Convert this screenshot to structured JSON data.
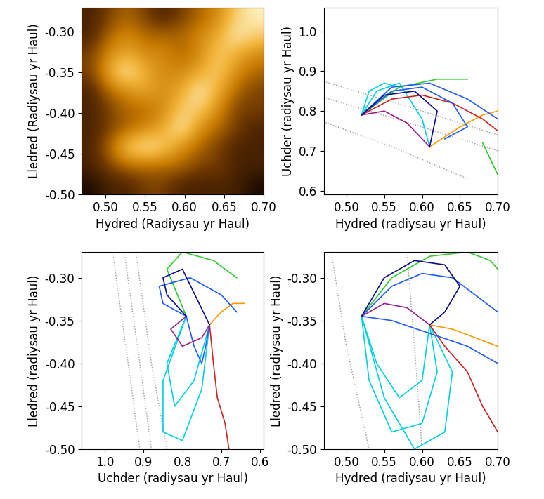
{
  "chart_data": [
    {
      "type": "heatmap",
      "xlabel": "Hydred (Radiysau yr Haul)",
      "ylabel": "Lledred (Radiysau yr Haul)",
      "xlim": [
        0.47,
        0.7
      ],
      "ylim": [
        -0.5,
        -0.27
      ],
      "xticks": [
        {
          "value": 0.5,
          "label": "0.50"
        },
        {
          "value": 0.55,
          "label": "0.55"
        },
        {
          "value": 0.6,
          "label": "0.60"
        },
        {
          "value": 0.65,
          "label": "0.65"
        },
        {
          "value": 0.7,
          "label": "0.70"
        }
      ],
      "yticks": [
        {
          "value": -0.3,
          "label": "-0.30"
        },
        {
          "value": -0.35,
          "label": "-0.35"
        },
        {
          "value": -0.4,
          "label": "-0.40"
        },
        {
          "value": -0.45,
          "label": "-0.45"
        },
        {
          "value": -0.5,
          "label": "-0.50"
        }
      ],
      "cells": [
        [
          0.3,
          0.4,
          0.5,
          0.4,
          0.3,
          0.4,
          0.5,
          0.6,
          0.8,
          0.9
        ],
        [
          0.3,
          0.5,
          0.6,
          0.5,
          0.5,
          0.5,
          0.6,
          0.7,
          0.9,
          0.8
        ],
        [
          0.4,
          0.6,
          0.7,
          0.6,
          0.6,
          0.5,
          0.6,
          0.8,
          0.7,
          0.6
        ],
        [
          0.4,
          0.7,
          0.9,
          0.7,
          0.6,
          0.6,
          0.7,
          0.8,
          0.6,
          0.5
        ],
        [
          0.3,
          0.5,
          0.6,
          0.7,
          0.6,
          0.7,
          0.9,
          0.7,
          0.5,
          0.4
        ],
        [
          0.3,
          0.4,
          0.5,
          0.5,
          0.6,
          0.8,
          0.8,
          0.6,
          0.4,
          0.4
        ],
        [
          0.3,
          0.4,
          0.5,
          0.6,
          0.7,
          0.9,
          0.6,
          0.5,
          0.4,
          0.3
        ],
        [
          0.3,
          0.5,
          0.8,
          0.9,
          0.8,
          0.6,
          0.5,
          0.4,
          0.3,
          0.3
        ],
        [
          0.3,
          0.4,
          0.5,
          0.5,
          0.5,
          0.5,
          0.4,
          0.4,
          0.3,
          0.3
        ],
        [
          0.2,
          0.3,
          0.3,
          0.4,
          0.4,
          0.3,
          0.3,
          0.3,
          0.3,
          0.2
        ]
      ]
    },
    {
      "type": "line",
      "xlabel": "Hydred (radiysau yr Haul)",
      "ylabel": "Uchder (radiysau yr Haul)",
      "xlim": [
        0.47,
        0.7
      ],
      "ylim": [
        0.59,
        1.06
      ],
      "xticks": [
        {
          "value": 0.5,
          "label": "0.50"
        },
        {
          "value": 0.55,
          "label": "0.55"
        },
        {
          "value": 0.6,
          "label": "0.60"
        },
        {
          "value": 0.65,
          "label": "0.65"
        },
        {
          "value": 0.7,
          "label": "0.70"
        }
      ],
      "yticks": [
        0.6,
        0.7,
        0.8,
        0.9,
        1.0
      ],
      "series": [
        {
          "color": "#999999",
          "line_style": "dotted",
          "x": [
            0.46,
            0.6,
            0.7
          ],
          "values": [
            0.88,
            0.8,
            0.74
          ]
        },
        {
          "color": "#999999",
          "line_style": "dotted",
          "x": [
            0.46,
            0.6,
            0.7
          ],
          "values": [
            0.84,
            0.76,
            0.7
          ]
        },
        {
          "color": "#999999",
          "line_style": "dotted",
          "x": [
            0.46,
            0.56,
            0.66
          ],
          "values": [
            0.78,
            0.71,
            0.63
          ]
        },
        {
          "color": "#00d0e0",
          "line_style": "solid",
          "x": [
            0.52,
            0.54,
            0.57,
            0.6,
            0.61
          ],
          "values": [
            0.79,
            0.85,
            0.87,
            0.78,
            0.71
          ]
        },
        {
          "color": "#00d0e0",
          "line_style": "solid",
          "x": [
            0.52,
            0.53,
            0.55,
            0.57
          ],
          "values": [
            0.79,
            0.85,
            0.87,
            0.86
          ]
        },
        {
          "color": "#2ecc2e",
          "line_style": "solid",
          "x": [
            0.52,
            0.57,
            0.62,
            0.66
          ],
          "values": [
            0.79,
            0.86,
            0.88,
            0.88
          ]
        },
        {
          "color": "#2ecc2e",
          "line_style": "solid",
          "x": [
            0.68,
            0.69,
            0.7
          ],
          "values": [
            0.72,
            0.68,
            0.64
          ]
        },
        {
          "color": "#d02020",
          "line_style": "solid",
          "x": [
            0.52,
            0.56,
            0.6,
            0.64,
            0.68,
            0.7
          ],
          "values": [
            0.79,
            0.83,
            0.84,
            0.82,
            0.78,
            0.75
          ]
        },
        {
          "color": "#ff9a00",
          "line_style": "solid",
          "x": [
            0.61,
            0.65,
            0.68,
            0.7
          ],
          "values": [
            0.71,
            0.76,
            0.79,
            0.8
          ]
        },
        {
          "color": "#9a2090",
          "line_style": "solid",
          "x": [
            0.52,
            0.55,
            0.58,
            0.61
          ],
          "values": [
            0.79,
            0.8,
            0.77,
            0.71
          ]
        },
        {
          "color": "#1e5cff",
          "line_style": "solid",
          "x": [
            0.52,
            0.56,
            0.61,
            0.66,
            0.7
          ],
          "values": [
            0.79,
            0.86,
            0.87,
            0.83,
            0.78
          ]
        },
        {
          "color": "#1e5cff",
          "line_style": "solid",
          "x": [
            0.52,
            0.56,
            0.6,
            0.64,
            0.66,
            0.63
          ],
          "values": [
            0.79,
            0.85,
            0.86,
            0.82,
            0.76,
            0.73
          ]
        },
        {
          "color": "#0a0a8c",
          "line_style": "solid",
          "x": [
            0.52,
            0.55,
            0.59,
            0.62,
            0.61
          ],
          "values": [
            0.79,
            0.84,
            0.85,
            0.8,
            0.71
          ]
        }
      ]
    },
    {
      "type": "line",
      "xlabel": "Uchder (radiysau yr Haul)",
      "ylabel": "Lledred (radiysau yr Haul)",
      "xlim": [
        1.06,
        0.59
      ],
      "ylim": [
        -0.5,
        -0.27
      ],
      "xticks": [
        1.0,
        0.9,
        0.8,
        0.7,
        0.6
      ],
      "yticks": [
        {
          "value": -0.3,
          "label": "-0.30"
        },
        {
          "value": -0.35,
          "label": "-0.35"
        },
        {
          "value": -0.4,
          "label": "-0.40"
        },
        {
          "value": -0.45,
          "label": "-0.45"
        },
        {
          "value": -0.5,
          "label": "-0.50"
        }
      ],
      "series": [
        {
          "color": "#999999",
          "line_style": "dotted",
          "x": [
            0.92,
            0.88,
            0.84
          ],
          "values": [
            -0.27,
            -0.4,
            -0.5
          ]
        },
        {
          "color": "#999999",
          "line_style": "dotted",
          "x": [
            0.95,
            0.91,
            0.88
          ],
          "values": [
            -0.27,
            -0.4,
            -0.5
          ]
        },
        {
          "color": "#999999",
          "line_style": "dotted",
          "x": [
            0.98,
            0.94,
            0.91
          ],
          "values": [
            -0.27,
            -0.4,
            -0.5
          ]
        },
        {
          "color": "#00d0e0",
          "line_style": "solid",
          "x": [
            0.79,
            0.85,
            0.85,
            0.8,
            0.75,
            0.73
          ],
          "values": [
            -0.345,
            -0.42,
            -0.48,
            -0.49,
            -0.43,
            -0.355
          ]
        },
        {
          "color": "#00d0e0",
          "line_style": "solid",
          "x": [
            0.79,
            0.84,
            0.82,
            0.77,
            0.73
          ],
          "values": [
            -0.345,
            -0.4,
            -0.45,
            -0.42,
            -0.355
          ]
        },
        {
          "color": "#2ecc2e",
          "line_style": "solid",
          "x": [
            0.79,
            0.84,
            0.8,
            0.72,
            0.69,
            0.66
          ],
          "values": [
            -0.345,
            -0.29,
            -0.27,
            -0.28,
            -0.29,
            -0.3
          ]
        },
        {
          "color": "#d02020",
          "line_style": "solid",
          "x": [
            0.73,
            0.72,
            0.71,
            0.69,
            0.68
          ],
          "values": [
            -0.355,
            -0.4,
            -0.44,
            -0.47,
            -0.5
          ]
        },
        {
          "color": "#ff9a00",
          "line_style": "solid",
          "x": [
            0.73,
            0.7,
            0.67,
            0.64
          ],
          "values": [
            -0.355,
            -0.34,
            -0.33,
            -0.33
          ]
        },
        {
          "color": "#9a2090",
          "line_style": "solid",
          "x": [
            0.79,
            0.83,
            0.8,
            0.75,
            0.73
          ],
          "values": [
            -0.345,
            -0.36,
            -0.38,
            -0.37,
            -0.355
          ]
        },
        {
          "color": "#1e5cff",
          "line_style": "solid",
          "x": [
            0.79,
            0.85,
            0.86,
            0.78,
            0.7,
            0.66
          ],
          "values": [
            -0.345,
            -0.33,
            -0.31,
            -0.3,
            -0.32,
            -0.34
          ]
        },
        {
          "color": "#1e5cff",
          "line_style": "solid",
          "x": [
            0.79,
            0.77,
            0.75,
            0.74,
            0.73
          ],
          "values": [
            -0.345,
            -0.38,
            -0.4,
            -0.38,
            -0.355
          ]
        },
        {
          "color": "#0a0a8c",
          "line_style": "solid",
          "x": [
            0.79,
            0.84,
            0.85,
            0.8,
            0.73
          ],
          "values": [
            -0.345,
            -0.32,
            -0.3,
            -0.29,
            -0.355
          ]
        }
      ]
    },
    {
      "type": "line",
      "xlabel": "Hydred (radiysau yr Haul)",
      "ylabel": "Lledred (radiysau yr Haul)",
      "xlim": [
        0.47,
        0.7
      ],
      "ylim": [
        -0.5,
        -0.27
      ],
      "xticks": [
        {
          "value": 0.5,
          "label": "0.50"
        },
        {
          "value": 0.55,
          "label": "0.55"
        },
        {
          "value": 0.6,
          "label": "0.60"
        },
        {
          "value": 0.65,
          "label": "0.65"
        },
        {
          "value": 0.7,
          "label": "0.70"
        }
      ],
      "yticks": [
        {
          "value": -0.3,
          "label": "-0.30"
        },
        {
          "value": -0.35,
          "label": "-0.35"
        },
        {
          "value": -0.4,
          "label": "-0.40"
        },
        {
          "value": -0.45,
          "label": "-0.45"
        },
        {
          "value": -0.5,
          "label": "-0.50"
        }
      ],
      "series": [
        {
          "color": "#999999",
          "line_style": "dotted",
          "x": [
            0.48,
            0.5,
            0.53
          ],
          "values": [
            -0.27,
            -0.38,
            -0.5
          ]
        },
        {
          "color": "#999999",
          "line_style": "dotted",
          "x": [
            0.58,
            0.59,
            0.6
          ],
          "values": [
            -0.27,
            -0.38,
            -0.5
          ]
        },
        {
          "color": "#00d0e0",
          "line_style": "solid",
          "x": [
            0.52,
            0.53,
            0.56,
            0.6,
            0.62,
            0.61
          ],
          "values": [
            -0.345,
            -0.42,
            -0.48,
            -0.47,
            -0.41,
            -0.355
          ]
        },
        {
          "color": "#00d0e0",
          "line_style": "solid",
          "x": [
            0.52,
            0.54,
            0.57,
            0.6,
            0.61
          ],
          "values": [
            -0.345,
            -0.4,
            -0.44,
            -0.42,
            -0.355
          ]
        },
        {
          "color": "#00d0e0",
          "line_style": "solid",
          "x": [
            0.52,
            0.55,
            0.59,
            0.63,
            0.64,
            0.61
          ],
          "values": [
            -0.345,
            -0.44,
            -0.5,
            -0.48,
            -0.41,
            -0.355
          ]
        },
        {
          "color": "#2ecc2e",
          "line_style": "solid",
          "x": [
            0.52,
            0.56,
            0.61,
            0.66,
            0.69,
            0.7
          ],
          "values": [
            -0.345,
            -0.3,
            -0.275,
            -0.27,
            -0.28,
            -0.29
          ]
        },
        {
          "color": "#d02020",
          "line_style": "solid",
          "x": [
            0.61,
            0.63,
            0.66,
            0.68,
            0.7
          ],
          "values": [
            -0.355,
            -0.38,
            -0.41,
            -0.45,
            -0.48
          ]
        },
        {
          "color": "#ff9a00",
          "line_style": "solid",
          "x": [
            0.61,
            0.64,
            0.67,
            0.7
          ],
          "values": [
            -0.355,
            -0.36,
            -0.37,
            -0.38
          ]
        },
        {
          "color": "#9a2090",
          "line_style": "solid",
          "x": [
            0.52,
            0.55,
            0.58,
            0.61
          ],
          "values": [
            -0.345,
            -0.33,
            -0.335,
            -0.355
          ]
        },
        {
          "color": "#1e5cff",
          "line_style": "solid",
          "x": [
            0.52,
            0.56,
            0.6,
            0.64,
            0.67,
            0.7
          ],
          "values": [
            -0.345,
            -0.31,
            -0.295,
            -0.3,
            -0.32,
            -0.34
          ]
        },
        {
          "color": "#1e5cff",
          "line_style": "solid",
          "x": [
            0.52,
            0.56,
            0.61,
            0.66,
            0.7
          ],
          "values": [
            -0.345,
            -0.35,
            -0.365,
            -0.38,
            -0.4
          ]
        },
        {
          "color": "#0a0a8c",
          "line_style": "solid",
          "x": [
            0.52,
            0.55,
            0.59,
            0.63,
            0.65,
            0.63,
            0.61
          ],
          "values": [
            -0.345,
            -0.3,
            -0.28,
            -0.285,
            -0.31,
            -0.34,
            -0.355
          ]
        }
      ]
    }
  ]
}
